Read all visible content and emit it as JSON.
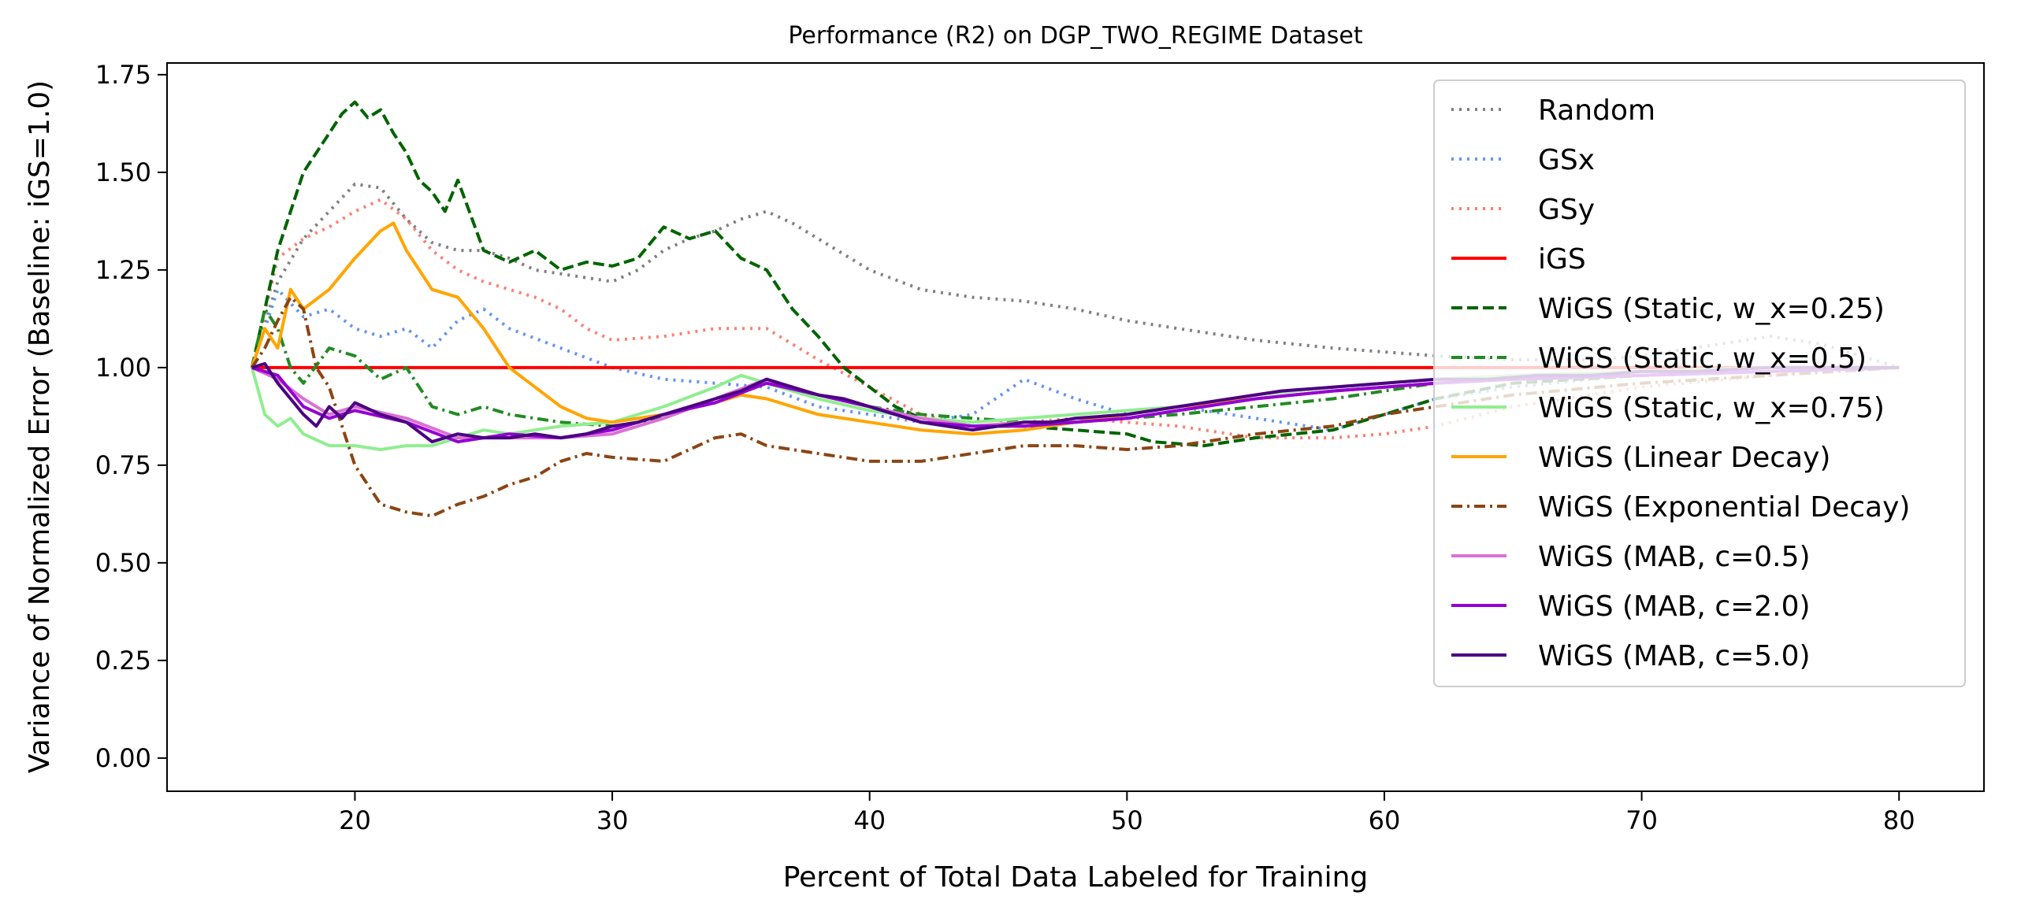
{
  "chart_data": {
    "type": "line",
    "title": "Performance (R2) on DGP_TWO_REGIME Dataset",
    "xlabel": "Percent of Total Data Labeled for Training",
    "ylabel": "Variance of Normalized Error (Baseline: iGS=1.0)",
    "xlim": [
      12.7,
      83.3
    ],
    "ylim": [
      -0.085,
      1.78
    ],
    "xticks": [
      20,
      30,
      40,
      50,
      60,
      70,
      80
    ],
    "yticks": [
      0.0,
      0.25,
      0.5,
      0.75,
      1.0,
      1.25,
      1.5,
      1.75
    ],
    "xtick_labels": [
      "20",
      "30",
      "40",
      "50",
      "60",
      "70",
      "80"
    ],
    "ytick_labels": [
      "0.00",
      "0.25",
      "0.50",
      "0.75",
      "1.00",
      "1.25",
      "1.50",
      "1.75"
    ],
    "grid": false,
    "legend_position": "top-right",
    "series": [
      {
        "name": "Random",
        "color": "#808080",
        "dash": "dotted",
        "x": [
          16,
          17,
          18,
          19,
          20,
          21,
          22,
          23,
          24,
          25,
          26,
          27,
          28,
          29,
          30,
          31,
          32,
          33,
          34,
          35,
          36,
          37,
          38,
          39,
          40,
          42,
          44,
          46,
          48,
          50,
          52,
          55,
          58,
          60,
          62,
          65,
          68,
          70,
          72,
          75,
          77,
          80
        ],
        "y": [
          1.0,
          1.22,
          1.33,
          1.4,
          1.47,
          1.46,
          1.38,
          1.32,
          1.3,
          1.3,
          1.28,
          1.25,
          1.24,
          1.23,
          1.22,
          1.25,
          1.3,
          1.33,
          1.35,
          1.38,
          1.4,
          1.37,
          1.33,
          1.29,
          1.25,
          1.2,
          1.18,
          1.17,
          1.15,
          1.12,
          1.1,
          1.07,
          1.05,
          1.04,
          1.03,
          1.02,
          1.02,
          1.03,
          1.05,
          1.08,
          1.06,
          1.0
        ]
      },
      {
        "name": "GSx",
        "color": "#6495ED",
        "dash": "dotted",
        "x": [
          16,
          17,
          18,
          19,
          20,
          21,
          22,
          23,
          24,
          25,
          26,
          28,
          30,
          32,
          34,
          36,
          38,
          40,
          42,
          44,
          46,
          48,
          50,
          52,
          54,
          56,
          58,
          60,
          62,
          65,
          68,
          70,
          75,
          80
        ],
        "y": [
          1.0,
          1.2,
          1.13,
          1.15,
          1.1,
          1.08,
          1.1,
          1.05,
          1.12,
          1.15,
          1.1,
          1.05,
          1.0,
          0.97,
          0.96,
          0.95,
          0.9,
          0.88,
          0.86,
          0.88,
          0.97,
          0.92,
          0.88,
          0.9,
          0.88,
          0.86,
          0.84,
          0.88,
          0.92,
          0.95,
          0.97,
          0.98,
          1.0,
          1.0
        ]
      },
      {
        "name": "GSy",
        "color": "#FA8072",
        "dash": "dotted",
        "x": [
          16,
          17,
          18,
          19,
          20,
          21,
          22,
          23,
          24,
          25,
          26,
          27,
          28,
          29,
          30,
          32,
          34,
          36,
          38,
          40,
          42,
          44,
          46,
          48,
          50,
          52,
          55,
          58,
          60,
          62,
          65,
          68,
          70,
          75,
          80
        ],
        "y": [
          1.0,
          1.28,
          1.33,
          1.36,
          1.4,
          1.43,
          1.38,
          1.3,
          1.25,
          1.22,
          1.2,
          1.18,
          1.15,
          1.1,
          1.07,
          1.08,
          1.1,
          1.1,
          1.02,
          0.95,
          0.88,
          0.85,
          0.86,
          0.87,
          0.86,
          0.85,
          0.82,
          0.82,
          0.83,
          0.85,
          0.9,
          0.93,
          0.95,
          0.98,
          1.0
        ]
      },
      {
        "name": "iGS",
        "color": "#FF0000",
        "dash": "solid",
        "x": [
          16,
          80
        ],
        "y": [
          1.0,
          1.0
        ]
      },
      {
        "name": "WiGS (Static, w_x=0.25)",
        "color": "#006400",
        "dash": "dashed",
        "x": [
          16,
          17,
          18,
          19,
          19.5,
          20,
          20.5,
          21,
          21.5,
          22,
          22.5,
          23,
          23.5,
          24,
          25,
          26,
          27,
          28,
          29,
          30,
          31,
          32,
          33,
          34,
          35,
          36,
          37,
          38,
          39,
          40,
          41,
          42,
          43,
          44,
          46,
          48,
          50,
          51,
          53,
          55,
          58,
          60,
          62,
          65,
          70,
          75,
          80
        ],
        "y": [
          1.0,
          1.3,
          1.5,
          1.6,
          1.65,
          1.68,
          1.64,
          1.66,
          1.6,
          1.55,
          1.48,
          1.45,
          1.4,
          1.48,
          1.3,
          1.27,
          1.3,
          1.25,
          1.27,
          1.26,
          1.28,
          1.36,
          1.33,
          1.35,
          1.28,
          1.25,
          1.15,
          1.08,
          1.0,
          0.95,
          0.9,
          0.87,
          0.86,
          0.85,
          0.85,
          0.84,
          0.83,
          0.81,
          0.8,
          0.82,
          0.84,
          0.88,
          0.92,
          0.96,
          0.98,
          0.99,
          1.0
        ]
      },
      {
        "name": "WiGS (Static, w_x=0.5)",
        "color": "#228B22",
        "dash": "dashdot",
        "x": [
          16,
          16.5,
          17,
          17.5,
          18,
          19,
          20,
          21,
          22,
          23,
          24,
          25,
          26,
          28,
          30,
          32,
          34,
          36,
          38,
          40,
          42,
          44,
          46,
          48,
          50,
          52,
          55,
          58,
          60,
          62,
          65,
          70,
          75,
          80
        ],
        "y": [
          1.0,
          1.15,
          1.1,
          1.0,
          0.96,
          1.05,
          1.03,
          0.97,
          1.0,
          0.9,
          0.88,
          0.9,
          0.88,
          0.86,
          0.85,
          0.87,
          0.92,
          0.96,
          0.93,
          0.9,
          0.88,
          0.87,
          0.86,
          0.86,
          0.87,
          0.88,
          0.9,
          0.92,
          0.94,
          0.96,
          0.97,
          0.98,
          0.99,
          1.0
        ]
      },
      {
        "name": "WiGS (Static, w_x=0.75)",
        "color": "#90EE90",
        "dash": "solid",
        "x": [
          16,
          16.5,
          17,
          17.5,
          18,
          19,
          20,
          21,
          22,
          23,
          24,
          25,
          26,
          27,
          28,
          30,
          32,
          34,
          35,
          36,
          38,
          40,
          42,
          44,
          46,
          48,
          50,
          52,
          55,
          58,
          60,
          62,
          65,
          70,
          75,
          80
        ],
        "y": [
          1.0,
          0.88,
          0.85,
          0.87,
          0.83,
          0.8,
          0.8,
          0.79,
          0.8,
          0.8,
          0.82,
          0.84,
          0.83,
          0.84,
          0.85,
          0.86,
          0.9,
          0.95,
          0.98,
          0.96,
          0.92,
          0.89,
          0.87,
          0.86,
          0.87,
          0.88,
          0.89,
          0.9,
          0.93,
          0.95,
          0.96,
          0.97,
          0.98,
          0.99,
          1.0,
          1.0
        ]
      },
      {
        "name": "WiGS (Linear Decay)",
        "color": "#FFA500",
        "dash": "solid",
        "x": [
          16,
          16.5,
          17,
          17.5,
          18,
          19,
          20,
          21,
          21.5,
          22,
          22.5,
          23,
          24,
          25,
          26,
          27,
          28,
          29,
          30,
          32,
          34,
          35,
          36,
          37,
          38,
          40,
          42,
          44,
          46,
          48,
          50,
          52,
          55,
          58,
          60,
          62,
          65,
          70,
          75,
          80
        ],
        "y": [
          1.0,
          1.1,
          1.05,
          1.2,
          1.15,
          1.2,
          1.28,
          1.35,
          1.37,
          1.3,
          1.25,
          1.2,
          1.18,
          1.1,
          1.0,
          0.95,
          0.9,
          0.87,
          0.86,
          0.88,
          0.91,
          0.93,
          0.92,
          0.9,
          0.88,
          0.86,
          0.84,
          0.83,
          0.84,
          0.86,
          0.88,
          0.9,
          0.92,
          0.94,
          0.95,
          0.96,
          0.97,
          0.98,
          0.99,
          1.0
        ]
      },
      {
        "name": "WiGS (Exponential Decay)",
        "color": "#8B4513",
        "dash": "dashdot",
        "x": [
          16,
          16.5,
          17,
          17.5,
          18,
          18.5,
          19,
          19.5,
          20,
          21,
          22,
          23,
          24,
          25,
          26,
          27,
          28,
          29,
          30,
          32,
          34,
          35,
          36,
          38,
          40,
          42,
          44,
          46,
          48,
          50,
          52,
          55,
          58,
          60,
          62,
          65,
          70,
          75,
          80
        ],
        "y": [
          1.0,
          1.05,
          1.12,
          1.18,
          1.15,
          1.0,
          0.95,
          0.85,
          0.75,
          0.65,
          0.63,
          0.62,
          0.65,
          0.67,
          0.7,
          0.72,
          0.76,
          0.78,
          0.77,
          0.76,
          0.82,
          0.83,
          0.8,
          0.78,
          0.76,
          0.76,
          0.78,
          0.8,
          0.8,
          0.79,
          0.8,
          0.83,
          0.85,
          0.88,
          0.9,
          0.93,
          0.96,
          0.98,
          1.0
        ]
      },
      {
        "name": "WiGS (MAB, c=0.5)",
        "color": "#DA70D6",
        "dash": "solid",
        "x": [
          16,
          17,
          18,
          19,
          20,
          22,
          24,
          26,
          28,
          30,
          32,
          34,
          36,
          38,
          40,
          42,
          44,
          46,
          48,
          50,
          52,
          55,
          58,
          60,
          62,
          65,
          70,
          75,
          80
        ],
        "y": [
          1.0,
          0.97,
          0.92,
          0.88,
          0.9,
          0.87,
          0.82,
          0.82,
          0.82,
          0.83,
          0.87,
          0.92,
          0.97,
          0.93,
          0.9,
          0.87,
          0.85,
          0.86,
          0.86,
          0.87,
          0.89,
          0.92,
          0.94,
          0.95,
          0.96,
          0.97,
          0.98,
          0.99,
          1.0
        ]
      },
      {
        "name": "WiGS (MAB, c=2.0)",
        "color": "#9400D3",
        "dash": "solid",
        "x": [
          16,
          17,
          18,
          19,
          20,
          22,
          24,
          26,
          28,
          30,
          32,
          34,
          36,
          38,
          40,
          42,
          44,
          46,
          48,
          50,
          52,
          55,
          58,
          60,
          62,
          65,
          70,
          75,
          80
        ],
        "y": [
          1.0,
          0.98,
          0.9,
          0.87,
          0.89,
          0.86,
          0.81,
          0.83,
          0.82,
          0.84,
          0.88,
          0.91,
          0.96,
          0.93,
          0.9,
          0.86,
          0.85,
          0.85,
          0.86,
          0.87,
          0.89,
          0.92,
          0.94,
          0.95,
          0.96,
          0.97,
          0.98,
          0.99,
          1.0
        ]
      },
      {
        "name": "WiGS (MAB, c=5.0)",
        "color": "#4B0082",
        "dash": "solid",
        "x": [
          16,
          16.5,
          17,
          17.5,
          18,
          18.5,
          19,
          19.5,
          20,
          21,
          22,
          23,
          24,
          25,
          26,
          27,
          28,
          29,
          30,
          31,
          32,
          33,
          34,
          35,
          36,
          37,
          38,
          39,
          40,
          41,
          42,
          43,
          44,
          45,
          46,
          47,
          48,
          50,
          52,
          54,
          56,
          58,
          60,
          62,
          64,
          66,
          68,
          70,
          72,
          75,
          78,
          80
        ],
        "y": [
          1.0,
          1.01,
          0.96,
          0.92,
          0.88,
          0.85,
          0.9,
          0.87,
          0.91,
          0.88,
          0.86,
          0.81,
          0.83,
          0.82,
          0.82,
          0.83,
          0.82,
          0.83,
          0.85,
          0.86,
          0.88,
          0.9,
          0.92,
          0.94,
          0.97,
          0.95,
          0.93,
          0.92,
          0.9,
          0.88,
          0.86,
          0.85,
          0.84,
          0.85,
          0.86,
          0.86,
          0.87,
          0.88,
          0.9,
          0.92,
          0.94,
          0.95,
          0.96,
          0.97,
          0.97,
          0.98,
          0.98,
          0.99,
          0.99,
          1.0,
          1.0,
          1.0
        ]
      }
    ]
  }
}
